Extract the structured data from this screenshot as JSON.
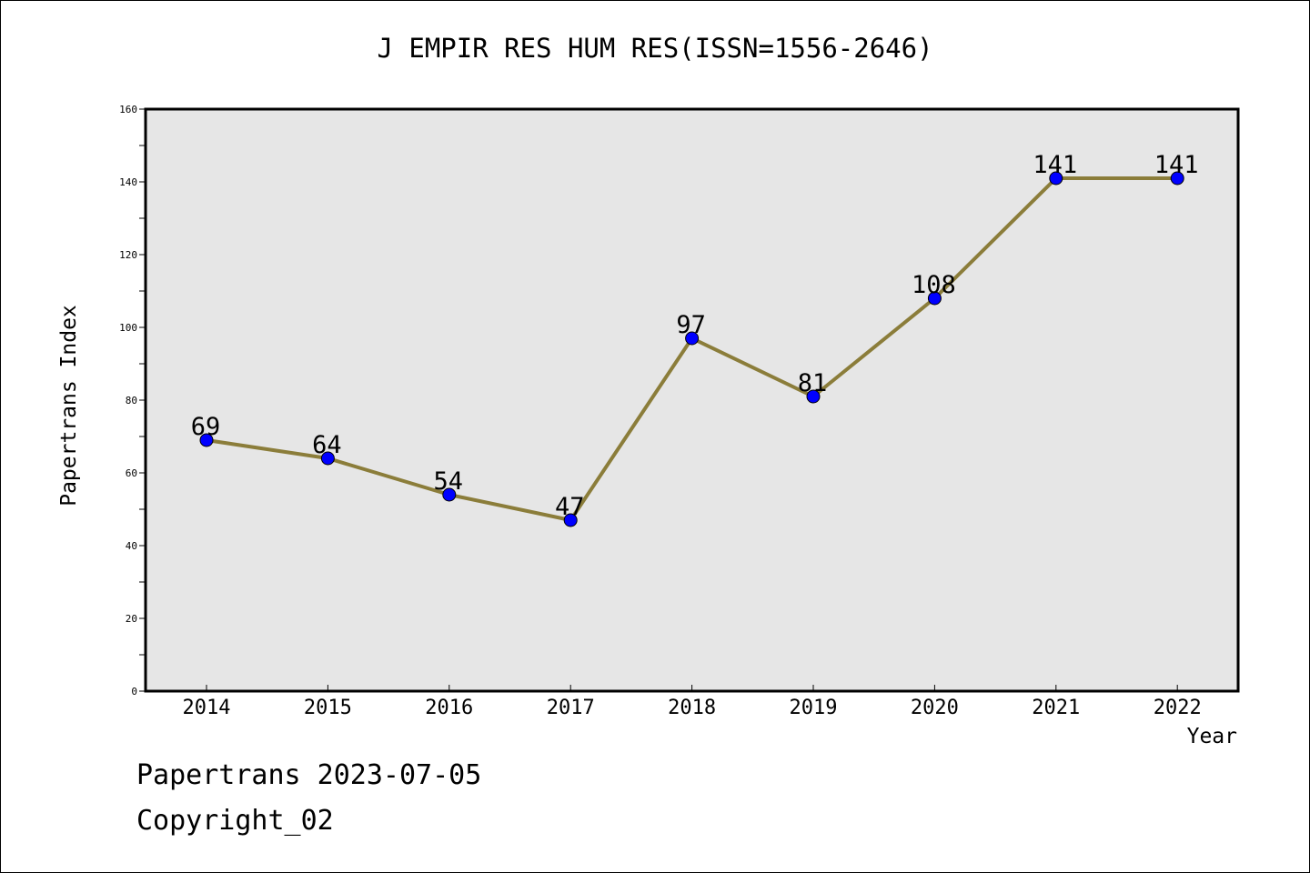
{
  "chart_data": {
    "type": "line",
    "title": "J EMPIR RES HUM RES(ISSN=1556-2646)",
    "xlabel": "Year",
    "ylabel": "Papertrans Index",
    "categories": [
      "2014",
      "2015",
      "2016",
      "2017",
      "2018",
      "2019",
      "2020",
      "2021",
      "2022"
    ],
    "series": [
      {
        "values": [
          69,
          64,
          54,
          47,
          97,
          81,
          108,
          141,
          141
        ]
      }
    ],
    "ylim": [
      0,
      160
    ],
    "yticks": [
      0,
      20,
      40,
      60,
      80,
      100,
      120,
      140,
      160
    ],
    "data_labels": [
      "69",
      "64",
      "54",
      "47",
      "97",
      "81",
      "108",
      "141",
      "141"
    ],
    "grid": false,
    "legend": "none",
    "colors": {
      "plot_background": "#e6e6e6",
      "line": "#8b7d3a",
      "marker": "#0000ff"
    }
  },
  "footer": {
    "line1": "Papertrans 2023-07-05",
    "line2": "Copyright_02"
  }
}
